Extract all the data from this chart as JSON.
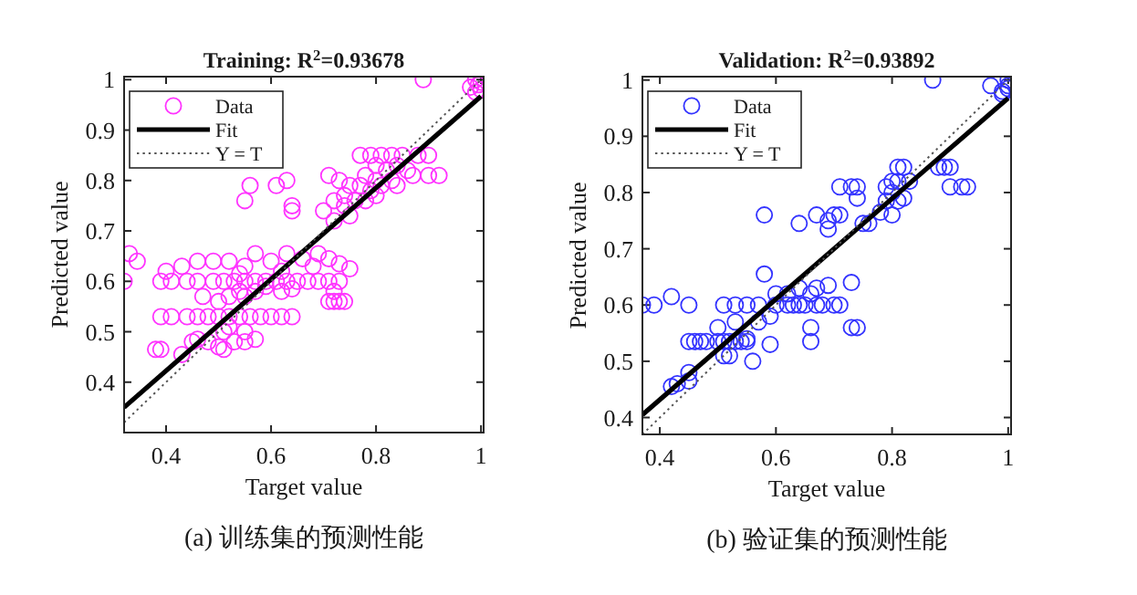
{
  "chart_data": [
    {
      "type": "scatter",
      "title": "Training: R$^{2}$=0.93678",
      "xlabel": "Target value",
      "ylabel": "Predicted value",
      "xlim": [
        0.32,
        1.005
      ],
      "ylim": [
        0.3,
        1.006
      ],
      "xticks": [
        0.4,
        0.6,
        0.8,
        1
      ],
      "yticks": [
        0.4,
        0.5,
        0.6,
        0.7,
        0.8,
        0.9,
        1
      ],
      "legend": "top left",
      "grid": false,
      "annotations": [
        "(a) 训练集的预测性能"
      ],
      "series": [
        {
          "name": "Data",
          "marker": "circle",
          "color": "#ff33ff",
          "x": [
            0.99,
            0.995,
            1.0,
            0.98,
            0.99,
            1.0,
            0.89,
            0.77,
            0.79,
            0.81,
            0.83,
            0.85,
            0.88,
            0.9,
            0.8,
            0.82,
            0.84,
            0.86,
            0.78,
            0.8,
            0.83,
            0.87,
            0.9,
            0.92,
            0.71,
            0.73,
            0.75,
            0.77,
            0.79,
            0.81,
            0.84,
            0.74,
            0.76,
            0.78,
            0.8,
            0.72,
            0.7,
            0.72,
            0.75,
            0.74,
            0.55,
            0.56,
            0.61,
            0.63,
            0.64,
            0.64,
            0.32,
            0.33,
            0.345,
            0.39,
            0.41,
            0.44,
            0.46,
            0.49,
            0.51,
            0.53,
            0.55,
            0.57,
            0.59,
            0.61,
            0.63,
            0.65,
            0.67,
            0.69,
            0.71,
            0.73,
            0.4,
            0.43,
            0.46,
            0.49,
            0.52,
            0.55,
            0.57,
            0.6,
            0.63,
            0.66,
            0.69,
            0.71,
            0.73,
            0.75,
            0.68,
            0.62,
            0.54,
            0.39,
            0.41,
            0.44,
            0.46,
            0.48,
            0.5,
            0.52,
            0.54,
            0.56,
            0.58,
            0.6,
            0.62,
            0.64,
            0.47,
            0.5,
            0.52,
            0.54,
            0.55,
            0.57,
            0.59,
            0.62,
            0.64,
            0.71,
            0.72,
            0.73,
            0.74,
            0.72,
            0.38,
            0.39,
            0.43,
            0.45,
            0.46,
            0.48,
            0.5,
            0.51,
            0.53,
            0.55,
            0.57,
            0.51,
            0.52,
            0.55
          ],
          "values": [
            1.0,
            0.99,
            0.995,
            0.985,
            0.975,
            0.98,
            1.0,
            0.85,
            0.85,
            0.85,
            0.85,
            0.85,
            0.85,
            0.85,
            0.83,
            0.82,
            0.83,
            0.82,
            0.81,
            0.8,
            0.8,
            0.81,
            0.81,
            0.81,
            0.81,
            0.8,
            0.79,
            0.79,
            0.78,
            0.79,
            0.79,
            0.77,
            0.76,
            0.76,
            0.77,
            0.76,
            0.74,
            0.72,
            0.73,
            0.75,
            0.76,
            0.79,
            0.79,
            0.8,
            0.75,
            0.74,
            0.6,
            0.655,
            0.64,
            0.6,
            0.6,
            0.6,
            0.6,
            0.6,
            0.6,
            0.6,
            0.6,
            0.6,
            0.6,
            0.6,
            0.6,
            0.6,
            0.6,
            0.6,
            0.6,
            0.6,
            0.62,
            0.63,
            0.64,
            0.64,
            0.64,
            0.63,
            0.655,
            0.64,
            0.655,
            0.645,
            0.655,
            0.645,
            0.635,
            0.625,
            0.63,
            0.62,
            0.615,
            0.53,
            0.53,
            0.53,
            0.53,
            0.53,
            0.53,
            0.53,
            0.53,
            0.53,
            0.53,
            0.53,
            0.53,
            0.53,
            0.57,
            0.56,
            0.57,
            0.58,
            0.57,
            0.58,
            0.59,
            0.58,
            0.585,
            0.56,
            0.56,
            0.56,
            0.56,
            0.58,
            0.465,
            0.465,
            0.455,
            0.48,
            0.485,
            0.48,
            0.47,
            0.465,
            0.48,
            0.48,
            0.485,
            0.5,
            0.51,
            0.5
          ]
        },
        {
          "name": "Fit",
          "type": "line",
          "line_style": "solid",
          "color": "#000000",
          "x": [
            0.32,
            1
          ],
          "values": [
            0.35,
            0.967
          ]
        },
        {
          "name": "Y = T",
          "type": "line",
          "line_style": "dotted",
          "color": "#555555",
          "x": [
            0.32,
            1
          ],
          "values": [
            0.32,
            1
          ]
        }
      ]
    },
    {
      "type": "scatter",
      "title": "Validation: R$^{2}$=0.93892",
      "xlabel": "Target value",
      "ylabel": "Predicted value",
      "xlim": [
        0.37,
        1.005
      ],
      "ylim": [
        0.37,
        1.006
      ],
      "xticks": [
        0.4,
        0.6,
        0.8,
        1
      ],
      "yticks": [
        0.4,
        0.5,
        0.6,
        0.7,
        0.8,
        0.9,
        1
      ],
      "legend": "top left",
      "grid": false,
      "annotations": [
        "(b) 验证集的预测性能"
      ],
      "series": [
        {
          "name": "Data",
          "marker": "circle",
          "color": "#3333ff",
          "x": [
            0.87,
            0.97,
            0.99,
            1.0,
            1.0,
            0.99,
            1.0,
            0.81,
            0.82,
            0.88,
            0.89,
            0.9,
            0.8,
            0.81,
            0.83,
            0.79,
            0.8,
            0.82,
            0.81,
            0.79,
            0.78,
            0.8,
            0.9,
            0.93,
            0.92,
            0.71,
            0.73,
            0.74,
            0.74,
            0.76,
            0.75,
            0.7,
            0.71,
            0.67,
            0.69,
            0.64,
            0.69,
            0.58,
            0.58,
            0.37,
            0.39,
            0.42,
            0.45,
            0.51,
            0.53,
            0.55,
            0.57,
            0.59,
            0.6,
            0.6,
            0.62,
            0.63,
            0.64,
            0.65,
            0.66,
            0.67,
            0.68,
            0.7,
            0.69,
            0.71,
            0.73,
            0.67,
            0.62,
            0.64,
            0.45,
            0.46,
            0.47,
            0.48,
            0.5,
            0.51,
            0.52,
            0.53,
            0.54,
            0.55,
            0.5,
            0.53,
            0.51,
            0.52,
            0.55,
            0.56,
            0.59,
            0.57,
            0.66,
            0.66,
            0.73,
            0.74,
            0.42,
            0.43,
            0.45,
            0.45
          ],
          "values": [
            1.0,
            0.99,
            0.98,
            1.0,
            0.99,
            0.975,
            0.985,
            0.845,
            0.845,
            0.845,
            0.845,
            0.845,
            0.82,
            0.82,
            0.82,
            0.81,
            0.8,
            0.79,
            0.785,
            0.785,
            0.765,
            0.76,
            0.81,
            0.81,
            0.81,
            0.81,
            0.81,
            0.81,
            0.79,
            0.745,
            0.745,
            0.76,
            0.76,
            0.76,
            0.75,
            0.745,
            0.735,
            0.76,
            0.655,
            0.6,
            0.6,
            0.615,
            0.6,
            0.6,
            0.6,
            0.6,
            0.6,
            0.58,
            0.6,
            0.62,
            0.62,
            0.6,
            0.6,
            0.6,
            0.62,
            0.63,
            0.6,
            0.6,
            0.635,
            0.6,
            0.64,
            0.6,
            0.6,
            0.63,
            0.535,
            0.535,
            0.535,
            0.535,
            0.535,
            0.535,
            0.535,
            0.535,
            0.535,
            0.535,
            0.56,
            0.57,
            0.51,
            0.51,
            0.54,
            0.5,
            0.53,
            0.57,
            0.535,
            0.56,
            0.56,
            0.56,
            0.455,
            0.46,
            0.48,
            0.465
          ]
        },
        {
          "name": "Fit",
          "type": "line",
          "line_style": "solid",
          "color": "#000000",
          "x": [
            0.37,
            1
          ],
          "values": [
            0.405,
            0.968
          ]
        },
        {
          "name": "Y = T",
          "type": "line",
          "line_style": "dotted",
          "color": "#555555",
          "x": [
            0.37,
            1
          ],
          "values": [
            0.37,
            1
          ]
        }
      ]
    }
  ]
}
